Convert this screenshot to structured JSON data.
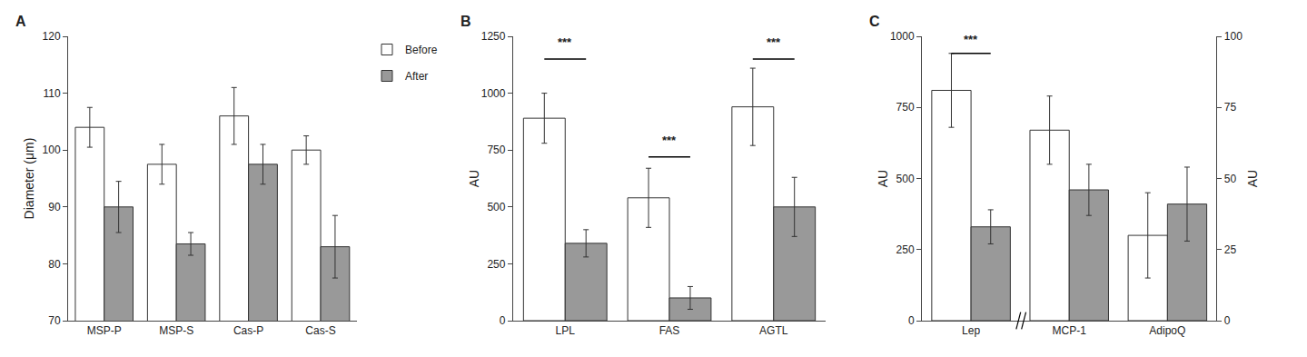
{
  "chart_data": [
    {
      "type": "bar",
      "title": "A",
      "categories": [
        "MSP-P",
        "MSP-S",
        "Cas-P",
        "Cas-S"
      ],
      "series": [
        {
          "name": "Before",
          "color": "white",
          "values": [
            104.0,
            97.5,
            106.0,
            100.0
          ],
          "errors": [
            3.5,
            3.5,
            5.0,
            2.5
          ]
        },
        {
          "name": "After",
          "color": "#999999",
          "values": [
            90.0,
            83.5,
            97.5,
            83.0
          ],
          "errors": [
            4.5,
            2.0,
            3.5,
            5.5
          ]
        }
      ],
      "ylabel": "Diameter (μm)",
      "ylim": [
        70,
        120
      ],
      "yticks": [
        70,
        80,
        90,
        100,
        110,
        120
      ],
      "grid": false,
      "legend": "right"
    },
    {
      "type": "bar",
      "title": "B",
      "categories": [
        "LPL",
        "FAS",
        "AGTL"
      ],
      "series": [
        {
          "name": "Before",
          "color": "white",
          "values": [
            890.0,
            540.0,
            940.0
          ],
          "errors": [
            110.0,
            130.0,
            170.0
          ]
        },
        {
          "name": "After",
          "color": "#999999",
          "values": [
            340.0,
            100.0,
            500.0
          ],
          "errors": [
            60.0,
            50.0,
            130.0
          ]
        }
      ],
      "ylabel": "AU",
      "ylim": [
        0,
        1250
      ],
      "yticks": [
        0,
        250,
        500,
        750,
        1000,
        1250
      ],
      "grid": false,
      "annotations": [
        {
          "text": "***",
          "category": "LPL",
          "y": 1185,
          "line_y": 1150
        },
        {
          "text": "***",
          "category": "FAS",
          "y": 755,
          "line_y": 720
        },
        {
          "text": "***",
          "category": "AGTL",
          "y": 1185,
          "line_y": 1150
        }
      ]
    },
    {
      "type": "bar",
      "title": "C",
      "categories": [
        "Lep",
        "MCP-1",
        "AdipoQ"
      ],
      "series": [
        {
          "name": "Before",
          "color": "white",
          "values": [
            810.0,
            null,
            null
          ],
          "errors": [
            130.0,
            null,
            null
          ]
        },
        {
          "name": "After",
          "color": "#999999",
          "values": [
            330.0,
            null,
            null
          ],
          "errors": [
            60.0,
            null,
            null
          ]
        },
        {
          "name": "Before",
          "color": "white",
          "axis": "y2",
          "values": [
            null,
            67.0,
            30.0
          ],
          "errors": [
            null,
            12.0,
            15.0
          ]
        },
        {
          "name": "After",
          "color": "#999999",
          "axis": "y2",
          "values": [
            null,
            46.0,
            41.0
          ],
          "errors": [
            null,
            9.0,
            13.0
          ]
        }
      ],
      "ylabel": "AU",
      "y2label": "AU",
      "ylim": [
        0,
        1000
      ],
      "yticks": [
        0,
        250,
        500,
        750,
        1000
      ],
      "y2lim": [
        0,
        100
      ],
      "y2ticks": [
        0,
        25,
        50,
        75,
        100
      ],
      "grid": false,
      "annotations": [
        {
          "text": "***",
          "category": "Lep",
          "y": 960,
          "line_y": 940
        }
      ]
    }
  ]
}
